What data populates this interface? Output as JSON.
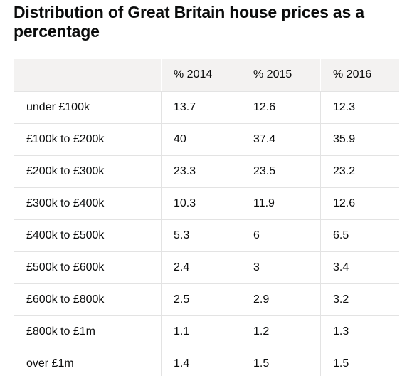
{
  "title": "Distribution of Great Britain house prices as a percentage",
  "table": {
    "headers": [
      "",
      "% 2014",
      "% 2015",
      "% 2016"
    ],
    "rows": [
      [
        "under £100k",
        "13.7",
        "12.6",
        "12.3"
      ],
      [
        "£100k to £200k",
        "40",
        "37.4",
        "35.9"
      ],
      [
        "£200k to £300k",
        "23.3",
        "23.5",
        "23.2"
      ],
      [
        "£300k to £400k",
        "10.3",
        "11.9",
        "12.6"
      ],
      [
        "£400k to £500k",
        "5.3",
        "6",
        "6.5"
      ],
      [
        "£500k to £600k",
        "2.4",
        "3",
        "3.4"
      ],
      [
        "£600k to £800k",
        "2.5",
        "2.9",
        "3.2"
      ],
      [
        "£800k to £1m",
        "1.1",
        "1.2",
        "1.3"
      ],
      [
        "over £1m",
        "1.4",
        "1.5",
        "1.5"
      ]
    ]
  }
}
